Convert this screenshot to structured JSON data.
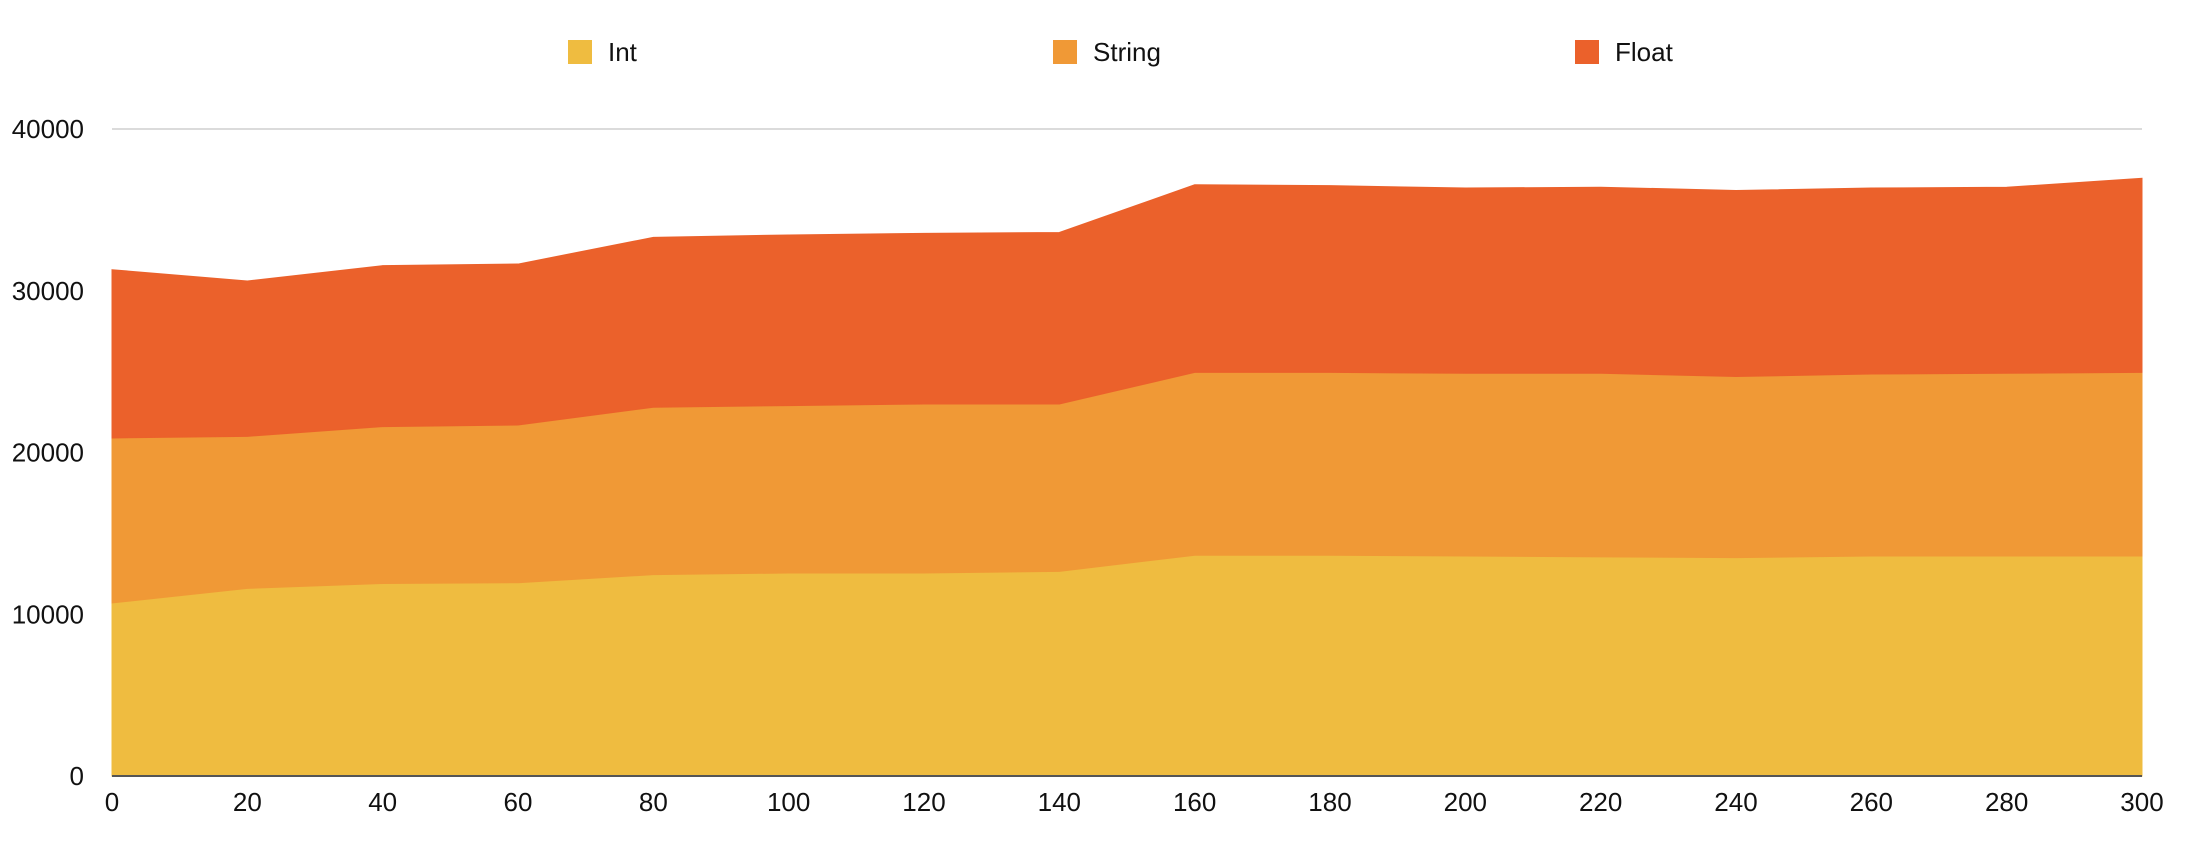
{
  "chart_data": {
    "type": "area",
    "stacked": true,
    "x": [
      0,
      20,
      40,
      60,
      80,
      100,
      120,
      140,
      160,
      180,
      200,
      220,
      240,
      260,
      280,
      300
    ],
    "series": [
      {
        "name": "Int",
        "color": "#EFBC40",
        "values": [
          10700,
          11600,
          11900,
          11950,
          12450,
          12550,
          12550,
          12650,
          13650,
          13650,
          13600,
          13550,
          13500,
          13600,
          13600,
          13600
        ]
      },
      {
        "name": "String",
        "color": "#F09936",
        "values": [
          10200,
          9400,
          9700,
          9750,
          10350,
          10350,
          10450,
          10350,
          11300,
          11300,
          11300,
          11350,
          11200,
          11250,
          11300,
          11350
        ]
      },
      {
        "name": "Float",
        "color": "#EB612B",
        "values": [
          10400,
          9600,
          9950,
          9950,
          10500,
          10550,
          10550,
          10600,
          11600,
          11550,
          11450,
          11500,
          11500,
          11500,
          11500,
          12000
        ]
      }
    ],
    "xticks": [
      "0",
      "20",
      "40",
      "60",
      "80",
      "100",
      "120",
      "140",
      "160",
      "180",
      "200",
      "220",
      "240",
      "260",
      "280",
      "300"
    ],
    "yticks": [
      "0",
      "10000",
      "20000",
      "30000",
      "40000"
    ],
    "xlim": [
      0,
      300
    ],
    "ylim": [
      0,
      40000
    ],
    "grid": true,
    "legend": {
      "position": "top",
      "entries": [
        "Int",
        "String",
        "Float"
      ]
    },
    "title": "",
    "xlabel": "",
    "ylabel": ""
  }
}
